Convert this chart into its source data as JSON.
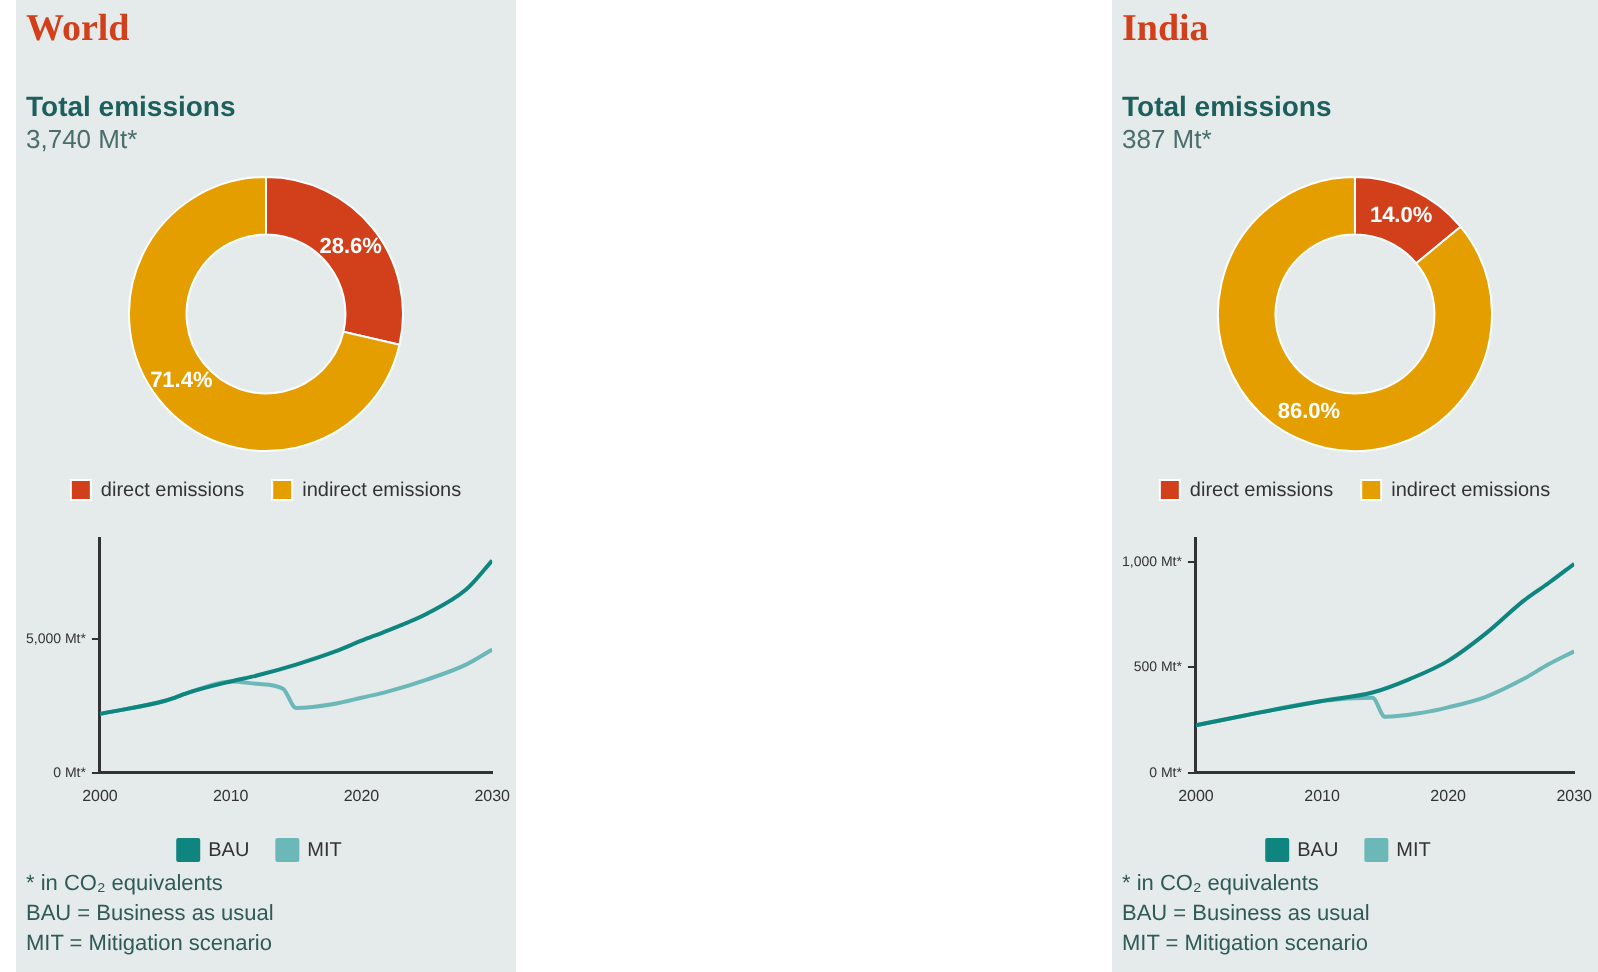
{
  "chart_data": [
    {
      "type": "donut",
      "title": "World",
      "subtitle": "Total emissions",
      "annotations": [
        "3,740 Mt*"
      ],
      "categories": [
        "direct emissions",
        "indirect emissions"
      ],
      "values": [
        28.6,
        71.4
      ],
      "colors": [
        "#d2401b",
        "#e59e00"
      ],
      "value_labels": [
        "28.6%",
        "71.4%"
      ],
      "legend": "bottom"
    },
    {
      "type": "line",
      "xlim": [
        2000,
        2030
      ],
      "xticks": [
        2000,
        2010,
        2020,
        2030
      ],
      "ylim": [
        0,
        8750
      ],
      "yticks": [
        {
          "value": 0,
          "label": "0 Mt*"
        },
        {
          "value": 5000,
          "label": "5,000 Mt*"
        }
      ],
      "legend": "bottom",
      "annotations": [
        "* in CO₂ equivalents",
        "BAU = Business as usual",
        "MIT = Mitigation scenario"
      ],
      "series": [
        {
          "name": "BAU",
          "color": "#0f8580",
          "x": [
            2000,
            2005,
            2007,
            2010,
            2012,
            2015,
            2018,
            2020,
            2022,
            2025,
            2028,
            2030
          ],
          "values": [
            2200,
            2690,
            3030,
            3410,
            3630,
            4040,
            4530,
            4930,
            5310,
            5940,
            6840,
            7920
          ]
        },
        {
          "name": "MIT",
          "color": "#6cb8b8",
          "x": [
            2000,
            2005,
            2007,
            2010,
            2012,
            2014,
            2015,
            2018,
            2020,
            2022,
            2025,
            2028,
            2030
          ],
          "values": [
            2200,
            2690,
            3030,
            3410,
            3320,
            3140,
            2420,
            2580,
            2800,
            3030,
            3480,
            4040,
            4600
          ]
        }
      ]
    },
    {
      "type": "donut",
      "title": "India",
      "subtitle": "Total emissions",
      "annotations": [
        "387 Mt*"
      ],
      "categories": [
        "direct emissions",
        "indirect emissions"
      ],
      "values": [
        14.0,
        86.0
      ],
      "colors": [
        "#d2401b",
        "#e59e00"
      ],
      "value_labels": [
        "14.0%",
        "86.0%"
      ],
      "legend": "bottom"
    },
    {
      "type": "line",
      "xlim": [
        2000,
        2030
      ],
      "xticks": [
        2000,
        2010,
        2020,
        2030
      ],
      "ylim": [
        0,
        1110
      ],
      "yticks": [
        {
          "value": 0,
          "label": "0 Mt*"
        },
        {
          "value": 500,
          "label": "500 Mt*"
        },
        {
          "value": 1000,
          "label": "1,000 Mt*"
        }
      ],
      "legend": "bottom",
      "annotations": [
        "* in CO₂ equivalents",
        "BAU = Business as usual",
        "MIT = Mitigation scenario"
      ],
      "series": [
        {
          "name": "BAU",
          "color": "#0f8580",
          "x": [
            2000,
            2005,
            2010,
            2014,
            2017,
            2020,
            2023,
            2026,
            2028,
            2030
          ],
          "values": [
            225,
            285,
            340,
            380,
            445,
            530,
            660,
            815,
            900,
            990
          ]
        },
        {
          "name": "MIT",
          "color": "#6cb8b8",
          "x": [
            2000,
            2005,
            2010,
            2014,
            2015,
            2018,
            2020,
            2023,
            2026,
            2028,
            2030
          ],
          "values": [
            225,
            285,
            340,
            355,
            265,
            285,
            310,
            360,
            445,
            515,
            575
          ]
        }
      ]
    }
  ]
}
